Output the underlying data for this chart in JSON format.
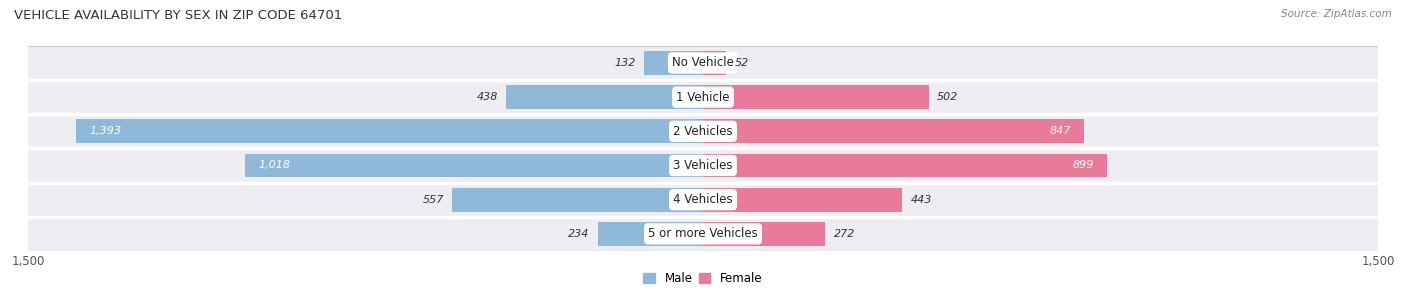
{
  "title": "VEHICLE AVAILABILITY BY SEX IN ZIP CODE 64701",
  "source": "Source: ZipAtlas.com",
  "categories": [
    "No Vehicle",
    "1 Vehicle",
    "2 Vehicles",
    "3 Vehicles",
    "4 Vehicles",
    "5 or more Vehicles"
  ],
  "male_values": [
    132,
    438,
    1393,
    1018,
    557,
    234
  ],
  "female_values": [
    52,
    502,
    847,
    899,
    443,
    272
  ],
  "male_color": "#90b8d8",
  "female_color": "#e87a9a",
  "row_bg_color": "#ededf2",
  "row_alt_bg": "#e5e5ec",
  "x_max": 1500,
  "legend_male": "Male",
  "legend_female": "Female"
}
